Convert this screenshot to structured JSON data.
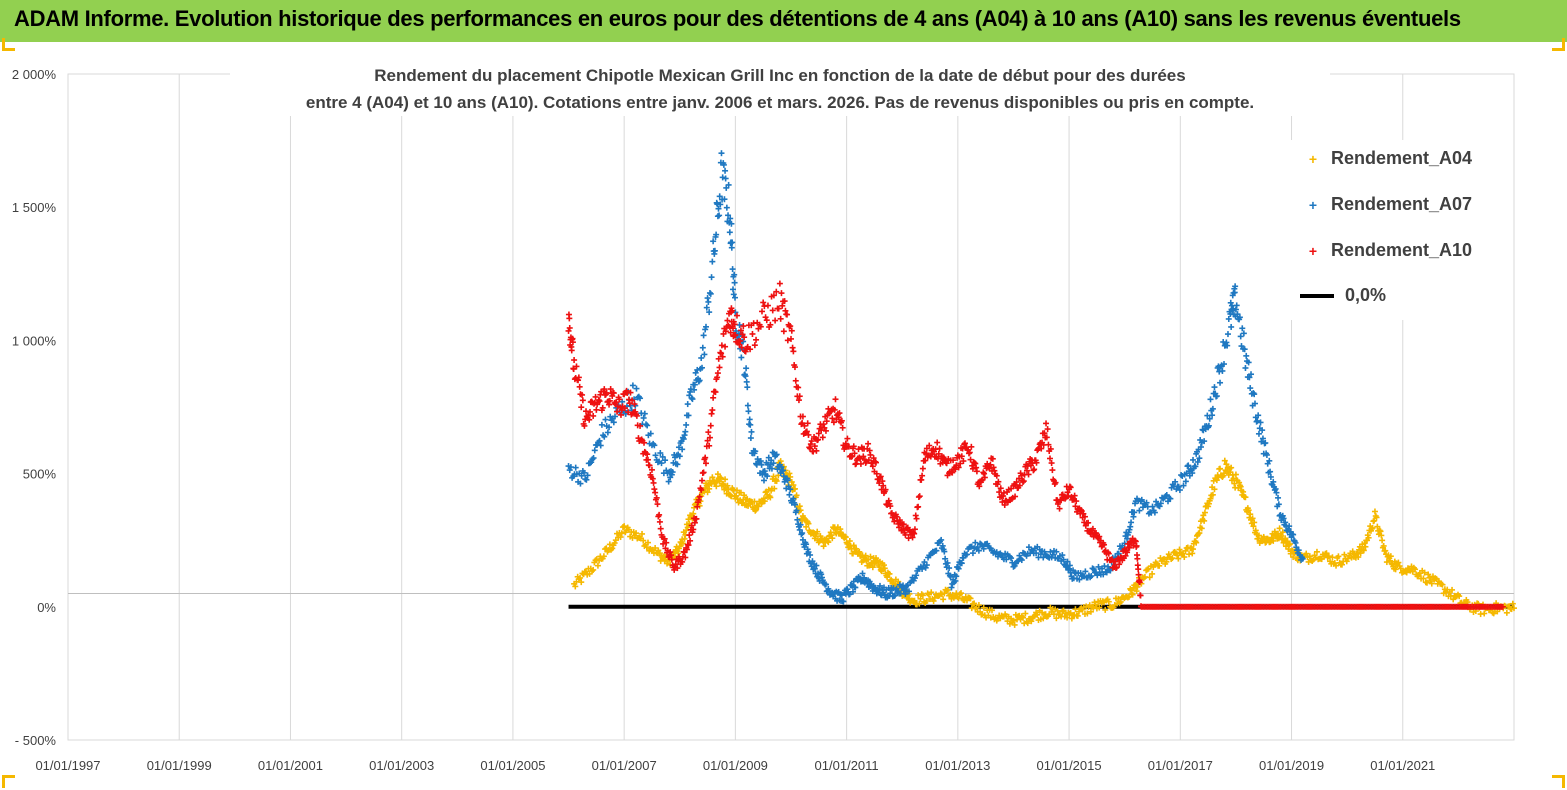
{
  "banner": {
    "title": "ADAM Informe. Evolution historique des performances en euros pour des détentions de 4 ans (A04) à 10 ans (A10) sans les revenus éventuels"
  },
  "chart_data": {
    "type": "scatter",
    "title_line1": "Rendement du placement Chipotle Mexican Grill Inc en fonction de la date de début pour des durées",
    "title_line2": "entre 4 (A04) et 10 ans (A10). Cotations entre janv. 2006 et mars. 2026. Pas de revenus disponibles ou pris en compte.",
    "xlabel": "",
    "ylabel": "",
    "xlim": [
      1997.0,
      2023.0
    ],
    "ylim": [
      -500,
      2000
    ],
    "y_ticks": [
      -500,
      0,
      500,
      1000,
      1500,
      2000
    ],
    "y_tick_labels": [
      "- 500%",
      "0%",
      "500%",
      "1 000%",
      "1 500%",
      "2 000%"
    ],
    "x_ticks": [
      1997,
      1999,
      2001,
      2003,
      2005,
      2007,
      2009,
      2011,
      2013,
      2015,
      2017,
      2019,
      2021
    ],
    "x_tick_labels": [
      "01/01/1997",
      "01/01/1999",
      "01/01/2001",
      "01/01/2003",
      "01/01/2005",
      "01/01/2007",
      "01/01/2009",
      "01/01/2011",
      "01/01/2013",
      "01/01/2015",
      "01/01/2017",
      "01/01/2019",
      "01/01/2021"
    ],
    "legend_position": "top-right",
    "series": [
      {
        "name": "Rendement_A04",
        "color": "#f5b800",
        "marker": "+",
        "points": [
          [
            2006.1,
            80
          ],
          [
            2006.4,
            140
          ],
          [
            2006.7,
            210
          ],
          [
            2007.0,
            290
          ],
          [
            2007.3,
            260
          ],
          [
            2007.6,
            200
          ],
          [
            2007.8,
            170
          ],
          [
            2008.0,
            220
          ],
          [
            2008.2,
            340
          ],
          [
            2008.4,
            420
          ],
          [
            2008.6,
            480
          ],
          [
            2008.8,
            460
          ],
          [
            2009.0,
            420
          ],
          [
            2009.2,
            390
          ],
          [
            2009.4,
            380
          ],
          [
            2009.6,
            420
          ],
          [
            2009.8,
            520
          ],
          [
            2010.0,
            470
          ],
          [
            2010.2,
            330
          ],
          [
            2010.4,
            280
          ],
          [
            2010.6,
            240
          ],
          [
            2010.8,
            290
          ],
          [
            2011.0,
            250
          ],
          [
            2011.2,
            190
          ],
          [
            2011.4,
            170
          ],
          [
            2011.6,
            160
          ],
          [
            2011.8,
            110
          ],
          [
            2012.0,
            60
          ],
          [
            2012.2,
            25
          ],
          [
            2012.5,
            35
          ],
          [
            2012.8,
            50
          ],
          [
            2013.1,
            30
          ],
          [
            2013.4,
            -10
          ],
          [
            2013.7,
            -40
          ],
          [
            2014.0,
            -50
          ],
          [
            2014.3,
            -40
          ],
          [
            2014.6,
            -20
          ],
          [
            2014.9,
            -30
          ],
          [
            2015.2,
            -20
          ],
          [
            2015.5,
            5
          ],
          [
            2015.8,
            10
          ],
          [
            2016.1,
            50
          ],
          [
            2016.3,
            100
          ],
          [
            2016.6,
            160
          ],
          [
            2016.9,
            190
          ],
          [
            2017.2,
            210
          ],
          [
            2017.4,
            320
          ],
          [
            2017.6,
            450
          ],
          [
            2017.8,
            530
          ],
          [
            2018.0,
            470
          ],
          [
            2018.2,
            380
          ],
          [
            2018.4,
            260
          ],
          [
            2018.6,
            250
          ],
          [
            2018.8,
            280
          ],
          [
            2019.0,
            210
          ],
          [
            2019.2,
            180
          ],
          [
            2019.5,
            200
          ],
          [
            2019.8,
            170
          ],
          [
            2020.1,
            190
          ],
          [
            2020.3,
            220
          ],
          [
            2020.5,
            340
          ],
          [
            2020.7,
            190
          ],
          [
            2020.9,
            150
          ],
          [
            2021.2,
            140
          ],
          [
            2021.5,
            100
          ],
          [
            2021.8,
            60
          ],
          [
            2022.1,
            10
          ],
          [
            2022.4,
            -10
          ],
          [
            2022.7,
            -5
          ],
          [
            2023.0,
            -5
          ]
        ]
      },
      {
        "name": "Rendement_A07",
        "color": "#1f78c1",
        "marker": "+",
        "points": [
          [
            2006.0,
            520
          ],
          [
            2006.3,
            480
          ],
          [
            2006.6,
            650
          ],
          [
            2006.9,
            730
          ],
          [
            2007.2,
            800
          ],
          [
            2007.5,
            610
          ],
          [
            2007.8,
            500
          ],
          [
            2008.0,
            580
          ],
          [
            2008.2,
            780
          ],
          [
            2008.4,
            920
          ],
          [
            2008.6,
            1300
          ],
          [
            2008.75,
            1620
          ],
          [
            2008.9,
            1480
          ],
          [
            2009.0,
            1100
          ],
          [
            2009.15,
            950
          ],
          [
            2009.3,
            600
          ],
          [
            2009.5,
            500
          ],
          [
            2009.7,
            560
          ],
          [
            2009.9,
            480
          ],
          [
            2010.1,
            350
          ],
          [
            2010.3,
            200
          ],
          [
            2010.5,
            120
          ],
          [
            2010.7,
            60
          ],
          [
            2010.9,
            30
          ],
          [
            2011.1,
            70
          ],
          [
            2011.3,
            110
          ],
          [
            2011.5,
            70
          ],
          [
            2011.7,
            50
          ],
          [
            2011.9,
            60
          ],
          [
            2012.1,
            70
          ],
          [
            2012.4,
            160
          ],
          [
            2012.7,
            240
          ],
          [
            2012.9,
            80
          ],
          [
            2013.1,
            200
          ],
          [
            2013.4,
            230
          ],
          [
            2013.7,
            200
          ],
          [
            2014.0,
            170
          ],
          [
            2014.3,
            210
          ],
          [
            2014.6,
            200
          ],
          [
            2014.9,
            180
          ],
          [
            2015.1,
            110
          ],
          [
            2015.4,
            130
          ],
          [
            2015.7,
            140
          ],
          [
            2016.0,
            240
          ],
          [
            2016.2,
            390
          ],
          [
            2016.5,
            360
          ],
          [
            2016.8,
            420
          ],
          [
            2017.1,
            490
          ],
          [
            2017.3,
            560
          ],
          [
            2017.5,
            700
          ],
          [
            2017.7,
            880
          ],
          [
            2017.9,
            1080
          ],
          [
            2018.0,
            1150
          ],
          [
            2018.2,
            900
          ],
          [
            2018.4,
            700
          ],
          [
            2018.6,
            520
          ],
          [
            2018.8,
            350
          ],
          [
            2019.0,
            270
          ],
          [
            2019.2,
            180
          ]
        ]
      },
      {
        "name": "Rendement_A10",
        "color": "#ee1111",
        "marker": "+",
        "points": [
          [
            2006.0,
            1100
          ],
          [
            2006.1,
            900
          ],
          [
            2006.3,
            700
          ],
          [
            2006.5,
            760
          ],
          [
            2006.7,
            800
          ],
          [
            2006.9,
            750
          ],
          [
            2007.1,
            780
          ],
          [
            2007.3,
            640
          ],
          [
            2007.5,
            500
          ],
          [
            2007.7,
            250
          ],
          [
            2007.9,
            150
          ],
          [
            2008.1,
            200
          ],
          [
            2008.3,
            350
          ],
          [
            2008.5,
            600
          ],
          [
            2008.7,
            900
          ],
          [
            2008.9,
            1100
          ],
          [
            2009.0,
            1050
          ],
          [
            2009.2,
            1000
          ],
          [
            2009.5,
            1080
          ],
          [
            2009.8,
            1150
          ],
          [
            2010.0,
            1000
          ],
          [
            2010.2,
            700
          ],
          [
            2010.4,
            600
          ],
          [
            2010.6,
            680
          ],
          [
            2010.8,
            740
          ],
          [
            2011.0,
            600
          ],
          [
            2011.2,
            560
          ],
          [
            2011.4,
            580
          ],
          [
            2011.6,
            480
          ],
          [
            2011.8,
            350
          ],
          [
            2012.0,
            300
          ],
          [
            2012.2,
            260
          ],
          [
            2012.4,
            560
          ],
          [
            2012.6,
            600
          ],
          [
            2012.8,
            520
          ],
          [
            2013.0,
            550
          ],
          [
            2013.2,
            600
          ],
          [
            2013.4,
            450
          ],
          [
            2013.6,
            550
          ],
          [
            2013.8,
            400
          ],
          [
            2014.0,
            430
          ],
          [
            2014.2,
            500
          ],
          [
            2014.4,
            550
          ],
          [
            2014.6,
            660
          ],
          [
            2014.8,
            380
          ],
          [
            2015.0,
            440
          ],
          [
            2015.2,
            350
          ],
          [
            2015.4,
            280
          ],
          [
            2015.6,
            230
          ],
          [
            2015.8,
            150
          ],
          [
            2016.0,
            200
          ],
          [
            2016.2,
            260
          ],
          [
            2016.3,
            0
          ],
          [
            2016.8,
            0
          ],
          [
            2017.3,
            0
          ],
          [
            2017.8,
            0
          ],
          [
            2018.3,
            0
          ],
          [
            2018.8,
            0
          ],
          [
            2019.3,
            0
          ],
          [
            2019.8,
            0
          ],
          [
            2020.3,
            0
          ],
          [
            2020.8,
            0
          ],
          [
            2021.3,
            0
          ],
          [
            2021.8,
            0
          ],
          [
            2022.3,
            0
          ],
          [
            2022.8,
            0
          ]
        ]
      },
      {
        "name": "0,0%",
        "color": "#000000",
        "marker": "line",
        "points": [
          [
            2006.0,
            0
          ],
          [
            2023.0,
            0
          ]
        ]
      }
    ]
  }
}
